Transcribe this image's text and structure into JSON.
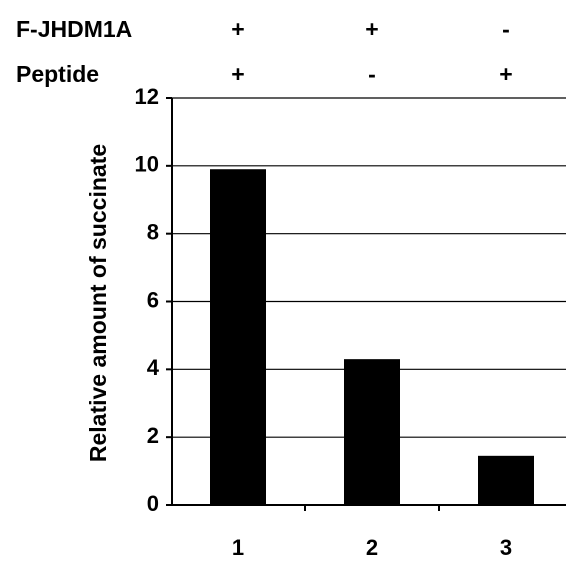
{
  "conditions": [
    {
      "name": "F-JHDM1A",
      "signs": [
        "+",
        "+",
        "-"
      ]
    },
    {
      "name": "Peptide",
      "signs": [
        "+",
        "-",
        "+"
      ]
    }
  ],
  "chart_data": {
    "type": "bar",
    "title": "",
    "xlabel": "",
    "ylabel": "Relative amount of succinate",
    "categories": [
      "1",
      "2",
      "3"
    ],
    "values": [
      9.9,
      4.3,
      1.45
    ],
    "ylim": [
      0,
      12
    ],
    "yticks": [
      0,
      2,
      4,
      6,
      8,
      10,
      12
    ],
    "grid": true,
    "legend": "none",
    "bar_color": "#000000",
    "grid_color": "#000000"
  }
}
